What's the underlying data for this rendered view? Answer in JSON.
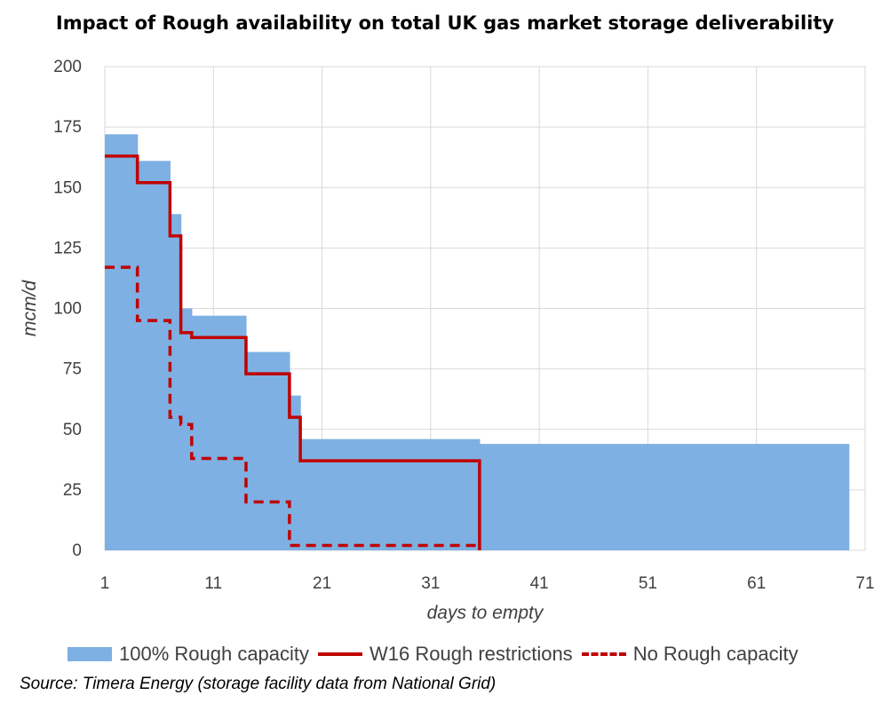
{
  "chart_data": {
    "type": "area",
    "title": "Impact of Rough availability on total UK gas market storage deliverability",
    "xlabel": "days to empty",
    "ylabel": "mcm/d",
    "xlim": [
      1,
      71
    ],
    "ylim": [
      0,
      200
    ],
    "x_ticks": [
      1,
      11,
      21,
      31,
      41,
      51,
      61,
      71
    ],
    "y_ticks": [
      0,
      25,
      50,
      75,
      100,
      125,
      150,
      175,
      200
    ],
    "grid": true,
    "legend_position": "bottom",
    "series": [
      {
        "name": "100% Rough capacity",
        "style": "stepped-area",
        "color": "#7eb0e3",
        "x": [
          1,
          4,
          7,
          8,
          9,
          10,
          14,
          18,
          19,
          35.5,
          69.5
        ],
        "y": [
          172,
          161,
          139,
          100,
          97,
          97,
          82,
          64,
          46,
          44,
          0
        ]
      },
      {
        "name": "W16 Rough restrictions",
        "style": "solid",
        "color": "#c00000",
        "x": [
          1,
          4,
          7,
          8,
          9,
          14,
          18,
          19,
          35.5,
          35.5
        ],
        "y": [
          163,
          152,
          130,
          90,
          88,
          73,
          55,
          37,
          37,
          0
        ]
      },
      {
        "name": "No Rough capacity",
        "style": "dashed",
        "color": "#c00000",
        "x": [
          1,
          4,
          7,
          8,
          9,
          14,
          18,
          35.5
        ],
        "y": [
          117,
          95,
          55,
          52,
          38,
          20,
          2,
          2
        ]
      }
    ]
  },
  "source": "Source: Timera Energy (storage facility data from National Grid)"
}
